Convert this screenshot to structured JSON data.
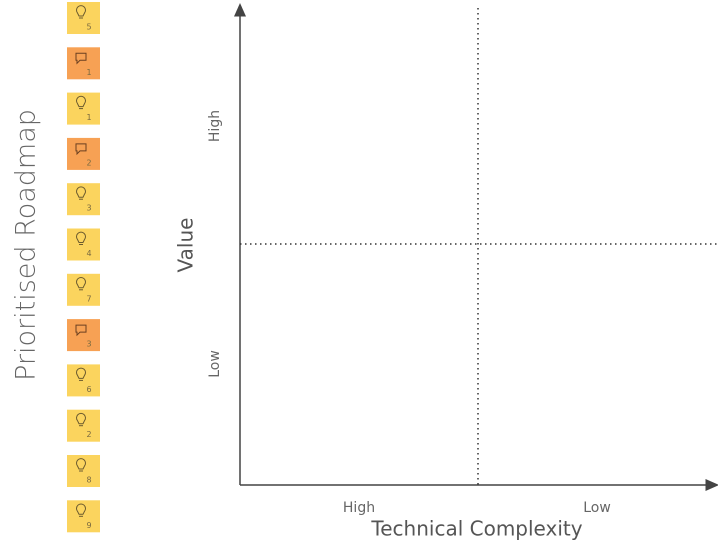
{
  "title": "Prioritised Roadmap",
  "notes": [
    {
      "kind": "idea",
      "color": "#fbd45e",
      "number": "5"
    },
    {
      "kind": "comment",
      "color": "#f7a154",
      "number": "1"
    },
    {
      "kind": "idea",
      "color": "#fbd45e",
      "number": "1"
    },
    {
      "kind": "comment",
      "color": "#f7a154",
      "number": "2"
    },
    {
      "kind": "idea",
      "color": "#fbd45e",
      "number": "3"
    },
    {
      "kind": "idea",
      "color": "#fbd45e",
      "number": "4"
    },
    {
      "kind": "idea",
      "color": "#fbd45e",
      "number": "7"
    },
    {
      "kind": "comment",
      "color": "#f7a154",
      "number": "3"
    },
    {
      "kind": "idea",
      "color": "#fbd45e",
      "number": "6"
    },
    {
      "kind": "idea",
      "color": "#fbd45e",
      "number": "2"
    },
    {
      "kind": "idea",
      "color": "#fbd45e",
      "number": "8"
    },
    {
      "kind": "idea",
      "color": "#fbd45e",
      "number": "9"
    }
  ],
  "matrix": {
    "y_axis_label": "Value",
    "y_high": "High",
    "y_low": "Low",
    "x_axis_label": "Technical Complexity",
    "x_high": "High",
    "x_low": "Low"
  }
}
